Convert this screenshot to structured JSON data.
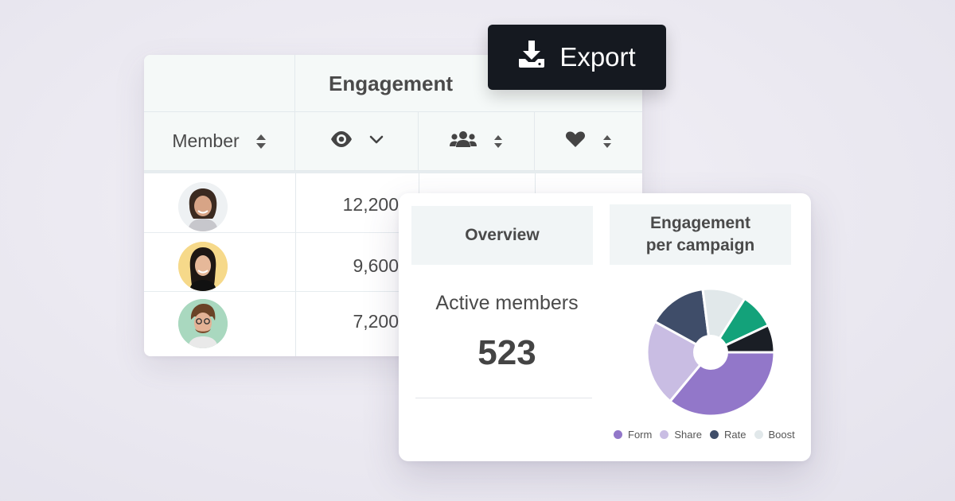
{
  "table": {
    "group_title": "Engagement",
    "member_label": "Member",
    "rows": [
      {
        "views": "12,200"
      },
      {
        "views": "9,600"
      },
      {
        "views": "7,200"
      }
    ]
  },
  "export": {
    "label": "Export"
  },
  "overview": {
    "overview_title": "Overview",
    "campaign_title_line1": "Engagement",
    "campaign_title_line2": "per campaign",
    "active_label": "Active members",
    "active_value": "523"
  },
  "chart_data": {
    "type": "pie",
    "title": "",
    "slices": [
      {
        "label": "Form",
        "value": 36,
        "color": "#9277c9"
      },
      {
        "label": "Share",
        "value": 22,
        "color": "#c9bde3"
      },
      {
        "label": "Rate",
        "value": 15,
        "color": "#3f4d69"
      },
      {
        "label": "Boost",
        "value": 11,
        "color": "#e1e8ea"
      },
      {
        "label": "",
        "value": 9,
        "color": "#13a27a"
      },
      {
        "label": "",
        "value": 7,
        "color": "#1a1e25"
      }
    ],
    "legend": [
      "Form",
      "Share",
      "Rate",
      "Boost"
    ],
    "legend_position": "bottom"
  },
  "icons": {
    "views": "eye-icon",
    "sort_dropdown": "chevron-down-icon",
    "members": "group-icon",
    "likes": "heart-icon",
    "export": "download-icon"
  },
  "colors": {
    "accent_dark": "#151920",
    "header_bg": "#f5f9f8"
  }
}
